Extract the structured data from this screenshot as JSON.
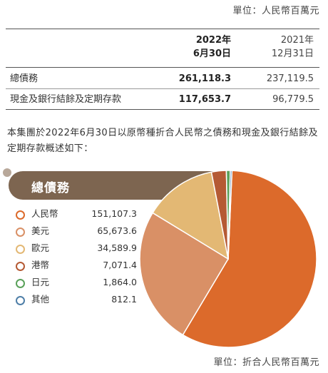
{
  "unit_top": "單位：人民幣百萬元",
  "table": {
    "headers": [
      {
        "line1": "2022年",
        "line2": "6月30日"
      },
      {
        "line1": "2021年",
        "line2": "12月31日"
      }
    ],
    "rows": [
      {
        "label": "總債務",
        "v2022": "261,118.3",
        "v2021": "237,119.5"
      },
      {
        "label": "現金及銀行結餘及定期存款",
        "v2022": "117,653.7",
        "v2021": "96,779.5"
      }
    ]
  },
  "paragraph": "本集團於2022年6月30日以原幣種折合人民幣之債務和現金及銀行結餘及定期存款概述如下：",
  "section_title": "總債務",
  "chart_data": {
    "type": "pie",
    "title": "總債務",
    "unit": "單位：折合人民幣百萬元",
    "slices": [
      {
        "label": "人民幣",
        "value": 151107.3,
        "value_text": "151,107.3",
        "color": "#dc6a2b"
      },
      {
        "label": "美元",
        "value": 65673.6,
        "value_text": "65,673.6",
        "color": "#d99066"
      },
      {
        "label": "歐元",
        "value": 34589.9,
        "value_text": "34,589.9",
        "color": "#e3b874"
      },
      {
        "label": "港幣",
        "value": 7071.4,
        "value_text": "7,071.4",
        "color": "#b55a34"
      },
      {
        "label": "日元",
        "value": 1864.0,
        "value_text": "1,864.0",
        "color": "#5aa15a"
      },
      {
        "label": "其他",
        "value": 812.1,
        "value_text": "812.1",
        "color": "#4f7fa8"
      }
    ]
  },
  "unit_bottom": "單位：折合人民幣百萬元"
}
